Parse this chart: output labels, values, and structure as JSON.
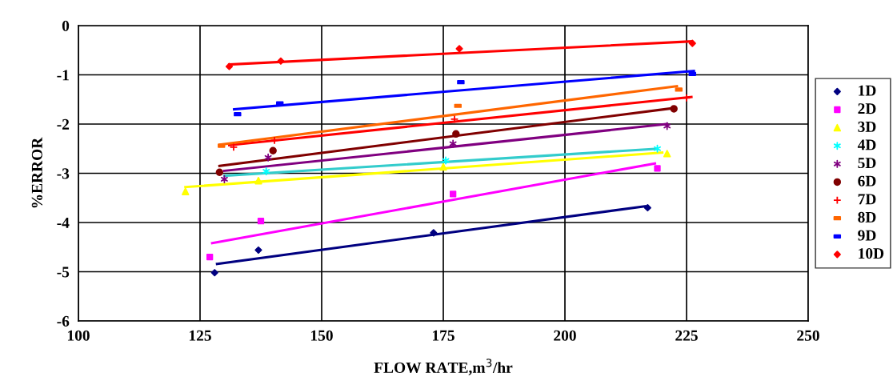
{
  "chart_data": {
    "type": "scatter",
    "xlabel": "FLOW RATE,m$^{3}$/hr",
    "ylabel": "%ERROR",
    "xlim": [
      100,
      250
    ],
    "xticks": [
      100,
      125,
      150,
      175,
      200,
      225,
      250
    ],
    "ylim": [
      -6,
      0
    ],
    "yticks": [
      -6,
      -5,
      -4,
      -3,
      -2,
      -1,
      0
    ],
    "grid": true,
    "legend": "right",
    "series": [
      {
        "name": "1D",
        "color": "#000080",
        "marker": "diamond",
        "x": [
          128,
          137,
          173,
          217
        ],
        "values": [
          -5.02,
          -4.56,
          -4.21,
          -3.7
        ]
      },
      {
        "name": "2D",
        "color": "#ff00ff",
        "marker": "square",
        "x": [
          127,
          137.5,
          177,
          219
        ],
        "values": [
          -4.7,
          -3.97,
          -3.42,
          -2.9
        ]
      },
      {
        "name": "3D",
        "color": "#ffff00",
        "marker": "triangle",
        "x": [
          122,
          137,
          175,
          221
        ],
        "values": [
          -3.37,
          -3.15,
          -2.87,
          -2.6
        ]
      },
      {
        "name": "4D",
        "color": "#00ffff",
        "marker": "cross",
        "x": [
          138.6,
          175.5,
          219
        ],
        "values": [
          -2.96,
          -2.74,
          -2.5
        ]
      },
      {
        "name": "5D",
        "color": "#800080",
        "marker": "cross",
        "x": [
          130,
          139,
          177,
          221
        ],
        "values": [
          -3.12,
          -2.68,
          -2.4,
          -2.04
        ]
      },
      {
        "name": "6D",
        "color": "#800000",
        "marker": "circle",
        "x": [
          129,
          140,
          177.6,
          222.4
        ],
        "values": [
          -2.98,
          -2.54,
          -2.2,
          -1.69
        ]
      },
      {
        "name": "7D",
        "color": "#ff0000",
        "marker": "plus",
        "x": [
          131.9,
          140.3,
          177.3,
          225
        ],
        "values": [
          -2.47,
          -2.33,
          -1.9,
          -1.47
        ]
      },
      {
        "name": "8D",
        "color": "#ff6600",
        "x": [
          129.4,
          178,
          223.4
        ],
        "values": [
          -2.44,
          -1.63,
          -1.3
        ]
      },
      {
        "name": "9D",
        "color": "#0000ff",
        "x": [
          132.7,
          141.4,
          178.6,
          226.2
        ],
        "values": [
          -1.8,
          -1.58,
          -1.15,
          -0.98
        ]
      },
      {
        "name": "10D",
        "color": "#ff0000",
        "marker": "diamond",
        "x": [
          131,
          141.6,
          178.3,
          226.2
        ],
        "values": [
          -0.83,
          -0.72,
          -0.47,
          -0.36
        ]
      },
      {
        "type": "line",
        "color": "#000080",
        "x": [
          128.5,
          216.5
        ],
        "values": [
          -4.84,
          -3.67
        ]
      },
      {
        "type": "line",
        "color": "#ff00ff",
        "x": [
          127.5,
          218.5
        ],
        "values": [
          -4.42,
          -2.8
        ]
      },
      {
        "type": "line",
        "color": "#ffff00",
        "x": [
          122,
          220
        ],
        "values": [
          -3.28,
          -2.58
        ]
      },
      {
        "type": "line",
        "color": "#33cccc",
        "x": [
          130,
          219
        ],
        "values": [
          -3.05,
          -2.5
        ]
      },
      {
        "type": "line",
        "color": "#800080",
        "x": [
          130,
          221
        ],
        "values": [
          -2.95,
          -2.0
        ]
      },
      {
        "type": "line",
        "color": "#800000",
        "x": [
          129,
          222
        ],
        "values": [
          -2.85,
          -1.68
        ]
      },
      {
        "type": "line",
        "color": "#ff0000",
        "x": [
          131,
          226
        ],
        "values": [
          -2.43,
          -1.45
        ]
      },
      {
        "type": "line",
        "color": "#ff6600",
        "x": [
          129,
          223
        ],
        "values": [
          -2.42,
          -1.23
        ]
      },
      {
        "type": "line",
        "color": "#0000ff",
        "x": [
          132,
          226.5
        ],
        "values": [
          -1.7,
          -0.92
        ]
      },
      {
        "type": "line",
        "color": "#ff0000",
        "x": [
          131,
          226
        ],
        "values": [
          -0.79,
          -0.32
        ]
      }
    ]
  }
}
